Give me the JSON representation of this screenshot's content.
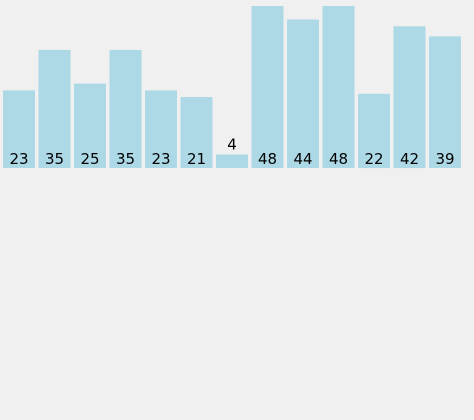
{
  "chart_data": {
    "type": "bar",
    "values": [
      23,
      35,
      25,
      35,
      23,
      21,
      4,
      48,
      44,
      48,
      22,
      42,
      39
    ],
    "ylim": [
      0,
      48
    ],
    "bar_color": "#add8e6",
    "background": "#f0f0f0",
    "grid": false,
    "legend": "none",
    "label_position": "inside-bottom; above bar when bar is too short"
  }
}
